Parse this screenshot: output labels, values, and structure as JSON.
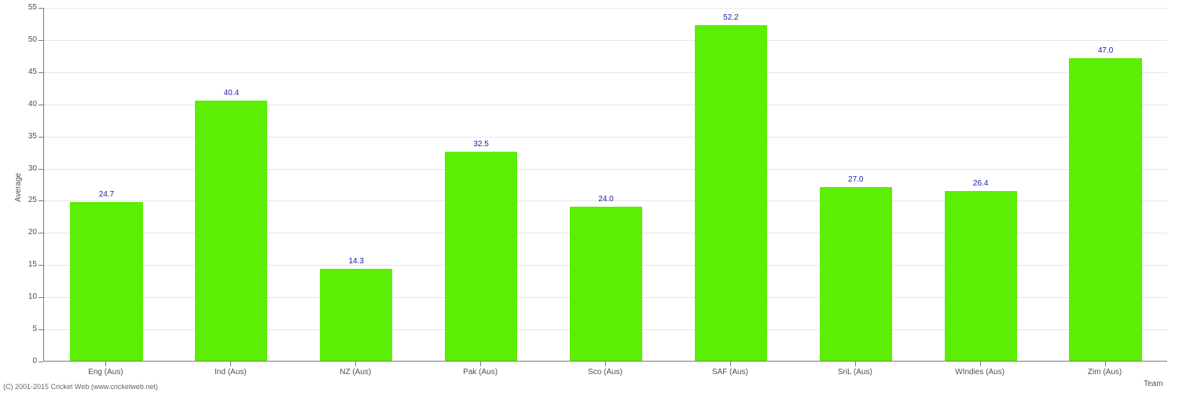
{
  "chart": {
    "type": "bar",
    "ylabel": "Average",
    "xlabel": "Team",
    "ylim": [
      0,
      55
    ],
    "ytick_step": 5,
    "bar_color": "#5cee04",
    "grid_color": "#e6e6e6",
    "axis_color": "#7a7a7a",
    "tick_label_color": "#505050",
    "value_label_color": "#1c1ca8",
    "background_color": "#ffffff",
    "bar_width_ratio": 0.58,
    "label_fontsize": 10,
    "value_fontsize": 10,
    "categories": [
      "Eng (Aus)",
      "Ind (Aus)",
      "NZ (Aus)",
      "Pak (Aus)",
      "Sco (Aus)",
      "SAF (Aus)",
      "SriL (Aus)",
      "WIndies (Aus)",
      "Zim (Aus)"
    ],
    "values": [
      24.7,
      40.4,
      14.3,
      32.5,
      24.0,
      52.2,
      27.0,
      26.4,
      47.0
    ],
    "value_labels": [
      "24.7",
      "40.4",
      "14.3",
      "32.5",
      "24.0",
      "52.2",
      "27.0",
      "26.4",
      "47.0"
    ]
  },
  "copyright": "(C) 2001-2015 Cricket Web (www.cricketweb.net)"
}
